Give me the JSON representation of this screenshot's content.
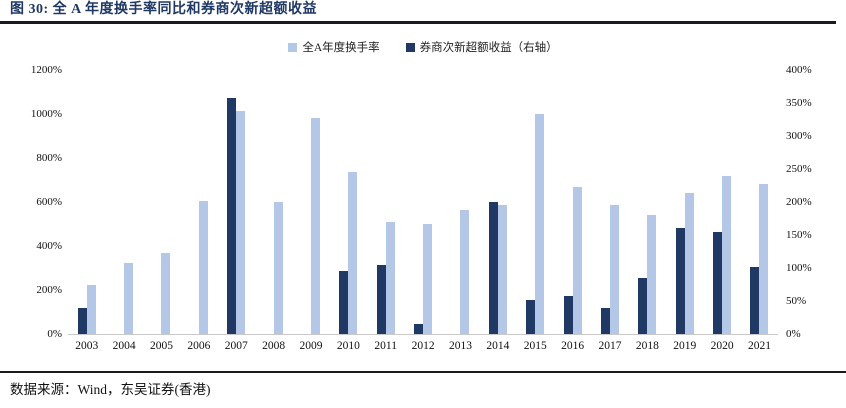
{
  "figure": {
    "title": "图 30: 全 A 年度换手率同比和券商次新超额收益",
    "source": "数据来源：Wind，东吴证券(香港)"
  },
  "legend": {
    "items": [
      {
        "label": "全A年度换手率",
        "color": "#b4c7e7"
      },
      {
        "label": "券商次新超额收益（右轴）",
        "color": "#1f3864"
      }
    ]
  },
  "colors": {
    "turnover_bar": "#b4c7e7",
    "excess_return_bar": "#1f3864",
    "title_text": "#1f3864",
    "axis_line": "#c9c9c9",
    "rule": "#1b1b1f"
  },
  "chart_data": {
    "type": "bar",
    "title": "全 A 年度换手率同比和券商次新超额收益",
    "categories": [
      "2003",
      "2004",
      "2005",
      "2006",
      "2007",
      "2008",
      "2009",
      "2010",
      "2011",
      "2012",
      "2013",
      "2014",
      "2015",
      "2016",
      "2017",
      "2018",
      "2019",
      "2020",
      "2021"
    ],
    "series": [
      {
        "key": "turnover",
        "name": "全A年度换手率",
        "axis": "left",
        "color": "#b4c7e7",
        "unit": "%",
        "values": [
          225,
          325,
          370,
          605,
          1015,
          600,
          980,
          735,
          510,
          500,
          565,
          585,
          1000,
          670,
          585,
          540,
          640,
          720,
          680
        ]
      },
      {
        "key": "excess_return",
        "name": "券商次新超额收益（右轴）",
        "axis": "right",
        "color": "#1f3864",
        "unit": "%",
        "values": [
          40,
          null,
          null,
          null,
          358,
          null,
          null,
          95,
          105,
          15,
          null,
          200,
          52,
          58,
          40,
          85,
          160,
          155,
          102
        ]
      }
    ],
    "left_axis": {
      "min": 0,
      "max": 1200,
      "ticks": [
        "1200%",
        "1000%",
        "800%",
        "600%",
        "400%",
        "200%",
        "0%"
      ]
    },
    "right_axis": {
      "min": 0,
      "max": 400,
      "ticks": [
        "400%",
        "350%",
        "300%",
        "250%",
        "200%",
        "150%",
        "100%",
        "50%",
        "0%"
      ]
    },
    "grid": false,
    "legend_position": "top-center"
  }
}
